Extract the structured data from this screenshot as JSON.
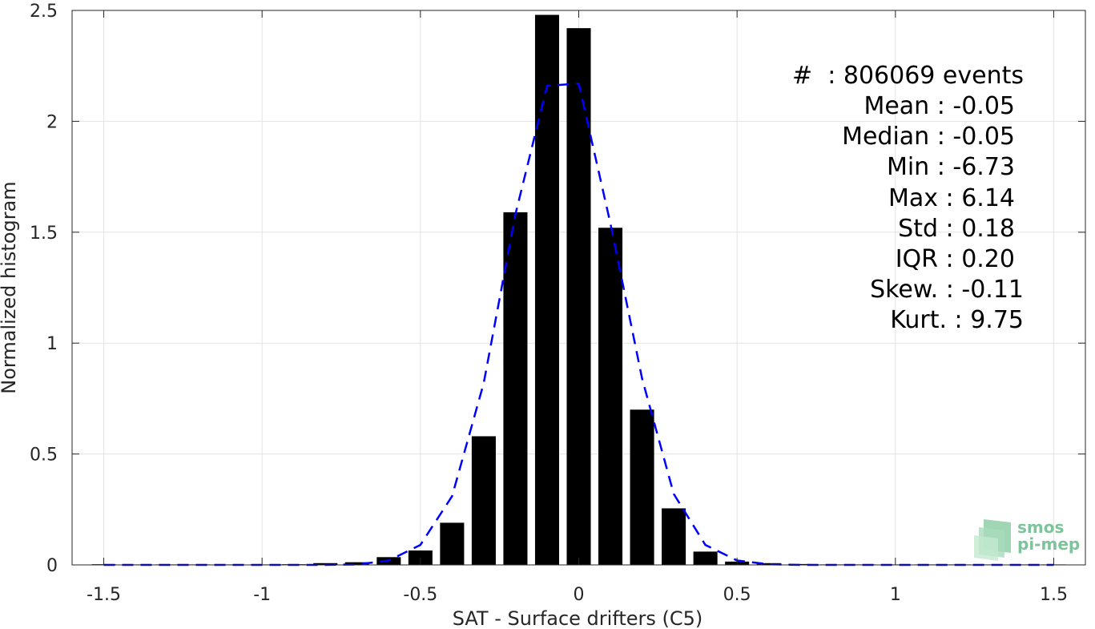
{
  "chart_data": {
    "type": "bar",
    "xlabel": "SAT - Surface drifters (C5)",
    "ylabel": "Normalized histogram",
    "xlim": [
      -1.6,
      1.6
    ],
    "ylim": [
      0,
      2.5
    ],
    "xticks": [
      -1.5,
      -1,
      -0.5,
      0,
      0.5,
      1,
      1.5
    ],
    "xtick_labels": [
      "-1.5",
      "-1",
      "-0.5",
      "0",
      "0.5",
      "1",
      "1.5"
    ],
    "yticks": [
      0,
      0.5,
      1,
      1.5,
      2,
      2.5
    ],
    "ytick_labels": [
      "0",
      "0.5",
      "1",
      "1.5",
      "2",
      "2.5"
    ],
    "grid": true,
    "bar_color": "#000000",
    "fit_color": "#0000ff",
    "bars": {
      "x": [
        -1.5,
        -1.4,
        -1.3,
        -1.2,
        -1.1,
        -1.0,
        -0.9,
        -0.8,
        -0.7,
        -0.6,
        -0.5,
        -0.4,
        -0.3,
        -0.2,
        -0.1,
        0.0,
        0.1,
        0.2,
        0.3,
        0.4,
        0.5,
        0.6,
        0.7,
        0.8,
        0.9,
        1.0,
        1.1,
        1.2,
        1.3,
        1.4,
        1.5
      ],
      "values": [
        0.003,
        0.001,
        0.001,
        0.001,
        0.001,
        0.002,
        0.003,
        0.008,
        0.012,
        0.035,
        0.065,
        0.19,
        0.58,
        1.59,
        2.48,
        2.42,
        1.52,
        0.7,
        0.255,
        0.06,
        0.015,
        0.008,
        0.004,
        0.002,
        0.001,
        0.001,
        0.001,
        0.001,
        0.001,
        0.001,
        0.002
      ]
    },
    "fit_curve": {
      "style": "dashed",
      "x": [
        -1.5,
        -1.4,
        -1.3,
        -1.2,
        -1.1,
        -1.0,
        -0.9,
        -0.8,
        -0.7,
        -0.6,
        -0.5,
        -0.4,
        -0.3,
        -0.2,
        -0.1,
        0.0,
        0.1,
        0.2,
        0.3,
        0.4,
        0.5,
        0.6,
        0.7,
        0.8,
        0.9,
        1.0,
        1.1,
        1.2,
        1.3,
        1.4,
        1.5
      ],
      "y": [
        0.0,
        0.0,
        0.0,
        0.0,
        0.0,
        0.0,
        0.0,
        0.0,
        0.002,
        0.02,
        0.09,
        0.31,
        0.82,
        1.58,
        2.16,
        2.17,
        1.54,
        0.84,
        0.32,
        0.09,
        0.02,
        0.003,
        0.0,
        0.0,
        0.0,
        0.0,
        0.0,
        0.0,
        0.0,
        0.0,
        0.0
      ]
    },
    "annotations": [
      "#  : 806069 events",
      "Mean : -0.05",
      "Median : -0.05",
      "Min : -6.73",
      "Max : 6.14",
      "Std : 0.18",
      "IQR : 0.20",
      "Skew. : -0.11",
      "Kurt. : 9.75"
    ]
  },
  "logo": {
    "line1": "smos",
    "line2": "pi-mep",
    "color": "#7fc39a"
  }
}
